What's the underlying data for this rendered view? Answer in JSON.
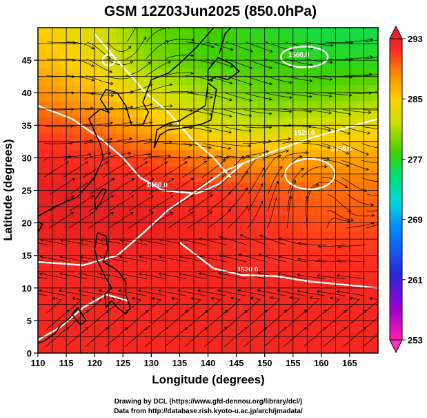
{
  "chart_data": {
    "type": "heatmap",
    "title": "GSM 12Z03Jun2025 (850.0hPa)",
    "xlabel": "Longitude (degrees)",
    "ylabel": "Latitude  (degrees)",
    "xlim": [
      110,
      170
    ],
    "ylim": [
      0,
      50
    ],
    "x_ticks": [
      110,
      115,
      120,
      125,
      130,
      135,
      140,
      145,
      150,
      155,
      160,
      165
    ],
    "y_ticks": [
      0,
      5,
      10,
      15,
      20,
      25,
      30,
      35,
      40,
      45
    ],
    "grid": true,
    "colorbar": {
      "ticks": [
        293,
        285,
        277,
        269,
        261,
        253
      ],
      "range": [
        253,
        293
      ],
      "colors": [
        "#ff1f8f",
        "#a000c8",
        "#2020d0",
        "#0090ff",
        "#00d0e0",
        "#00e080",
        "#40d000",
        "#a0e000",
        "#ffe000",
        "#ff9000",
        "#ff4020",
        "#f02020"
      ]
    },
    "temperature_field_K": {
      "longitudes": [
        110,
        120,
        130,
        140,
        150,
        160,
        170
      ],
      "latitudes": [
        50,
        45,
        40,
        35,
        30,
        25,
        20,
        15,
        10,
        5,
        0
      ],
      "values": [
        [
          285,
          283,
          279,
          278,
          277,
          276,
          276
        ],
        [
          286,
          284,
          280,
          278,
          278,
          277,
          277
        ],
        [
          288,
          286,
          283,
          281,
          279,
          279,
          280
        ],
        [
          290,
          289,
          286,
          283,
          282,
          283,
          284
        ],
        [
          292,
          291,
          290,
          288,
          287,
          287,
          287
        ],
        [
          293,
          293,
          292,
          291,
          290,
          289,
          289
        ],
        [
          293,
          293,
          293,
          292,
          291,
          290,
          290
        ],
        [
          292,
          292,
          292,
          292,
          291,
          291,
          291
        ],
        [
          292,
          292,
          292,
          292,
          292,
          292,
          292
        ],
        [
          292,
          292,
          292,
          292,
          292,
          292,
          292
        ],
        [
          292,
          292,
          292,
          292,
          292,
          292,
          292
        ]
      ]
    },
    "contour_labels": [
      "1460.0",
      "1520.0",
      "1550.0",
      "1560.0",
      "1520.0"
    ]
  },
  "credits": {
    "line1": "Drawing by DCL (https://www.gfd-dennou.org/library/dcl/)",
    "line2": "Data from http://database.rish.kyoto-u.ac.jp/arch/jmadata/"
  }
}
